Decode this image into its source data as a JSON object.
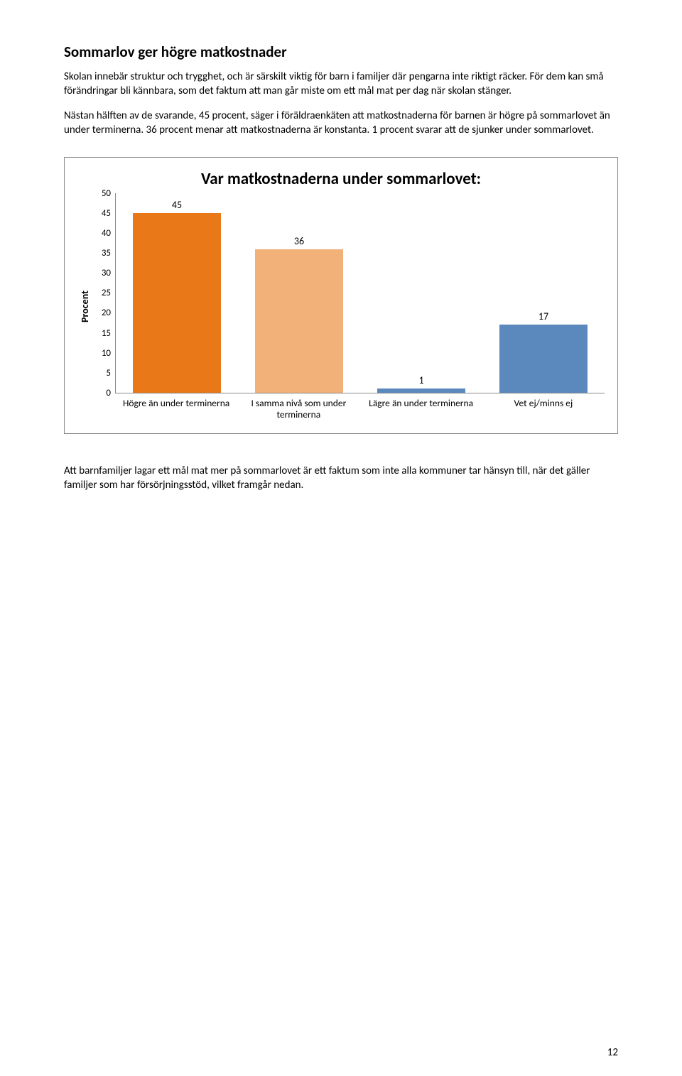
{
  "heading": "Sommarlov ger högre matkostnader",
  "paragraphs": {
    "p1": "Skolan innebär struktur och trygghet, och är särskilt viktig för barn i familjer där pengarna inte riktigt räcker. För dem kan små förändringar bli kännbara, som det faktum att man går miste om ett mål mat per dag när skolan stänger.",
    "p2": "Nästan hälften av de svarande, 45 procent, säger i föräldraenkäten att matkostnaderna för barnen är högre på sommarlovet än under terminerna. 36 procent menar att matkostnaderna är konstanta. 1 procent svarar att de sjunker under sommarlovet.",
    "p3": "Att barnfamiljer lagar ett mål mat mer på sommarlovet är ett faktum som inte alla kommuner tar hänsyn till, när det gäller familjer som har försörjningsstöd, vilket framgår nedan."
  },
  "chart": {
    "title": "Var matkostnaderna under sommarlovet:",
    "ylabel": "Procent",
    "ylim_max": 50,
    "ytick_step": 5,
    "yticks": [
      "50",
      "45",
      "40",
      "35",
      "30",
      "25",
      "20",
      "15",
      "10",
      "5",
      "0"
    ],
    "categories": [
      "Högre än under terminerna",
      "I samma nivå som under terminerna",
      "Lägre än under terminerna",
      "Vet ej/minns ej"
    ],
    "values": [
      45,
      36,
      1,
      17
    ],
    "bar_colors": [
      "#e97818",
      "#f3b17a",
      "#5b89bd",
      "#5b89bd"
    ],
    "axis_color": "#888888",
    "background_color": "#ffffff",
    "title_fontsize": 23,
    "label_fontsize": 13.5
  },
  "page_number": "12"
}
